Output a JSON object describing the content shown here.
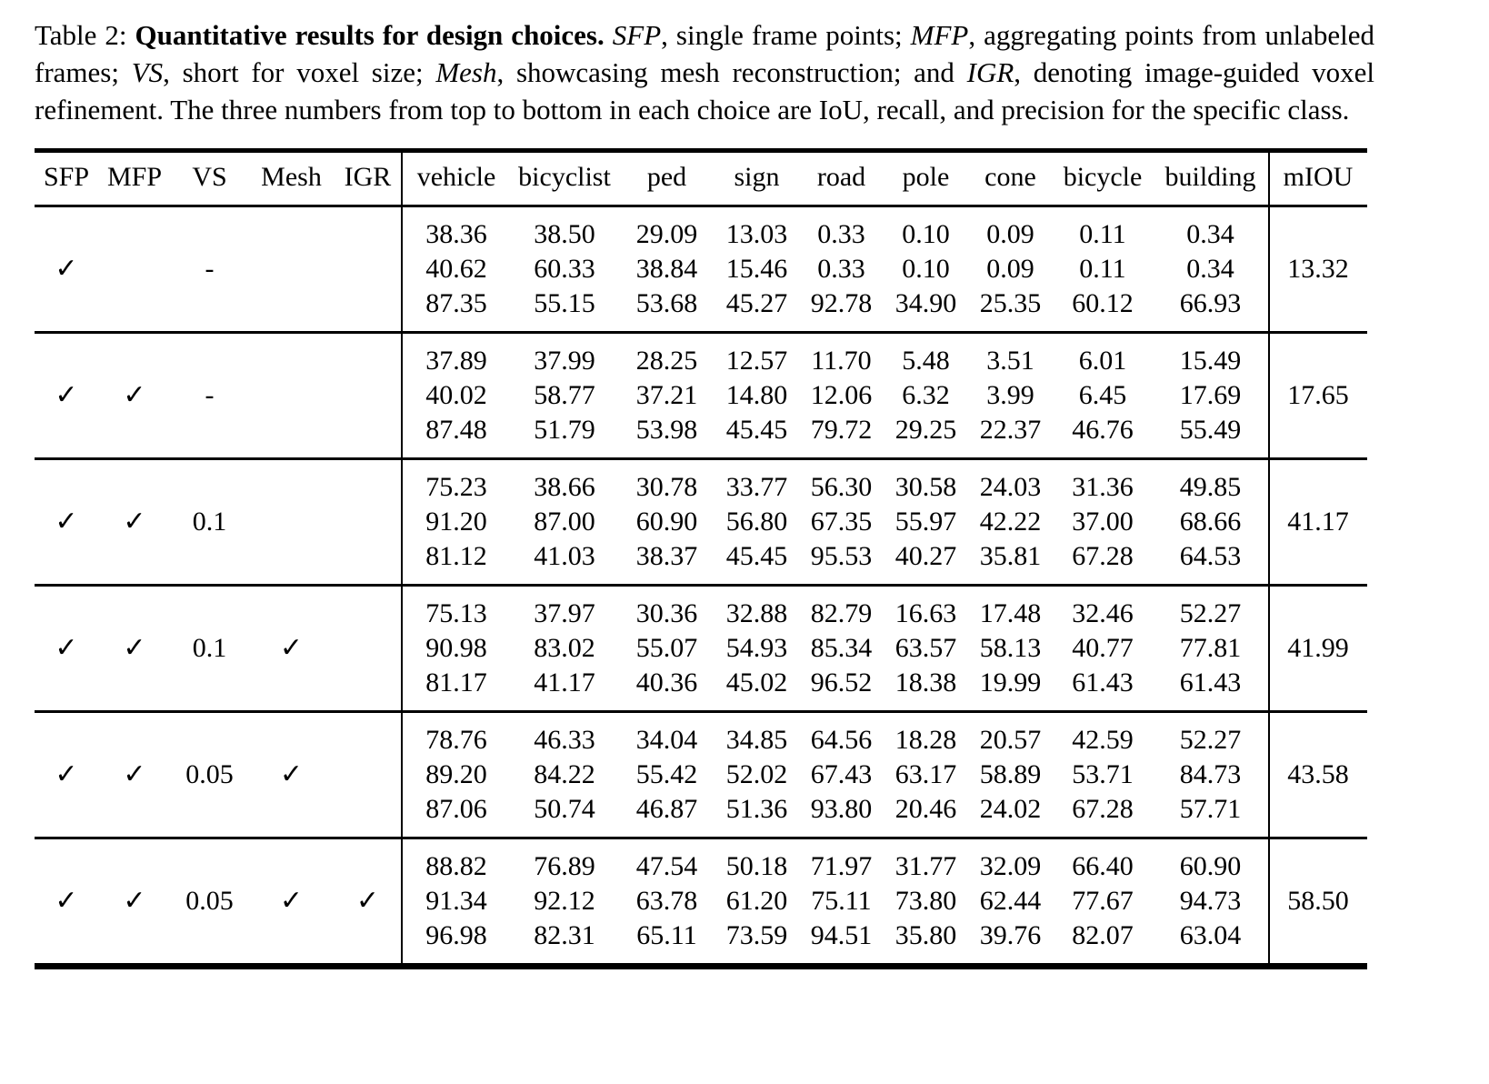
{
  "caption": {
    "segments": [
      {
        "text": "Table 2: ",
        "style": "normal"
      },
      {
        "text": "Quantitative results for design choices. ",
        "style": "bold"
      },
      {
        "text": "SFP",
        "style": "italic"
      },
      {
        "text": ", single frame points; ",
        "style": "normal"
      },
      {
        "text": "MFP",
        "style": "italic"
      },
      {
        "text": ", aggregating points from unlabeled frames; ",
        "style": "normal"
      },
      {
        "text": "VS",
        "style": "italic"
      },
      {
        "text": ", short for voxel size; ",
        "style": "normal"
      },
      {
        "text": "Mesh",
        "style": "italic"
      },
      {
        "text": ", showcasing mesh reconstruction; and ",
        "style": "normal"
      },
      {
        "text": "IGR",
        "style": "italic"
      },
      {
        "text": ", denoting image-guided voxel refinement. The three numbers from top to bottom in each choice are IoU, recall, and precision for the specific class.",
        "style": "normal"
      }
    ]
  },
  "table": {
    "config_columns": [
      "SFP",
      "MFP",
      "VS",
      "Mesh",
      "IGR"
    ],
    "class_columns": [
      "vehicle",
      "bicyclist",
      "ped",
      "sign",
      "road",
      "pole",
      "cone",
      "bicycle",
      "building"
    ],
    "summary_column": "mIOU",
    "check_glyph": "✓",
    "rows": [
      {
        "config": [
          "✓",
          "",
          "-",
          "",
          ""
        ],
        "values": {
          "vehicle": [
            "38.36",
            "40.62",
            "87.35"
          ],
          "bicyclist": [
            "38.50",
            "60.33",
            "55.15"
          ],
          "ped": [
            "29.09",
            "38.84",
            "53.68"
          ],
          "sign": [
            "13.03",
            "15.46",
            "45.27"
          ],
          "road": [
            "0.33",
            "0.33",
            "92.78"
          ],
          "pole": [
            "0.10",
            "0.10",
            "34.90"
          ],
          "cone": [
            "0.09",
            "0.09",
            "25.35"
          ],
          "bicycle": [
            "0.11",
            "0.11",
            "60.12"
          ],
          "building": [
            "0.34",
            "0.34",
            "66.93"
          ]
        },
        "mIOU": "13.32"
      },
      {
        "config": [
          "✓",
          "✓",
          "-",
          "",
          ""
        ],
        "values": {
          "vehicle": [
            "37.89",
            "40.02",
            "87.48"
          ],
          "bicyclist": [
            "37.99",
            "58.77",
            "51.79"
          ],
          "ped": [
            "28.25",
            "37.21",
            "53.98"
          ],
          "sign": [
            "12.57",
            "14.80",
            "45.45"
          ],
          "road": [
            "11.70",
            "12.06",
            "79.72"
          ],
          "pole": [
            "5.48",
            "6.32",
            "29.25"
          ],
          "cone": [
            "3.51",
            "3.99",
            "22.37"
          ],
          "bicycle": [
            "6.01",
            "6.45",
            "46.76"
          ],
          "building": [
            "15.49",
            "17.69",
            "55.49"
          ]
        },
        "mIOU": "17.65"
      },
      {
        "config": [
          "✓",
          "✓",
          "0.1",
          "",
          ""
        ],
        "values": {
          "vehicle": [
            "75.23",
            "91.20",
            "81.12"
          ],
          "bicyclist": [
            "38.66",
            "87.00",
            "41.03"
          ],
          "ped": [
            "30.78",
            "60.90",
            "38.37"
          ],
          "sign": [
            "33.77",
            "56.80",
            "45.45"
          ],
          "road": [
            "56.30",
            "67.35",
            "95.53"
          ],
          "pole": [
            "30.58",
            "55.97",
            "40.27"
          ],
          "cone": [
            "24.03",
            "42.22",
            "35.81"
          ],
          "bicycle": [
            "31.36",
            "37.00",
            "67.28"
          ],
          "building": [
            "49.85",
            "68.66",
            "64.53"
          ]
        },
        "mIOU": "41.17"
      },
      {
        "config": [
          "✓",
          "✓",
          "0.1",
          "✓",
          ""
        ],
        "values": {
          "vehicle": [
            "75.13",
            "90.98",
            "81.17"
          ],
          "bicyclist": [
            "37.97",
            "83.02",
            "41.17"
          ],
          "ped": [
            "30.36",
            "55.07",
            "40.36"
          ],
          "sign": [
            "32.88",
            "54.93",
            "45.02"
          ],
          "road": [
            "82.79",
            "85.34",
            "96.52"
          ],
          "pole": [
            "16.63",
            "63.57",
            "18.38"
          ],
          "cone": [
            "17.48",
            "58.13",
            "19.99"
          ],
          "bicycle": [
            "32.46",
            "40.77",
            "61.43"
          ],
          "building": [
            "52.27",
            "77.81",
            "61.43"
          ]
        },
        "mIOU": "41.99"
      },
      {
        "config": [
          "✓",
          "✓",
          "0.05",
          "✓",
          ""
        ],
        "values": {
          "vehicle": [
            "78.76",
            "89.20",
            "87.06"
          ],
          "bicyclist": [
            "46.33",
            "84.22",
            "50.74"
          ],
          "ped": [
            "34.04",
            "55.42",
            "46.87"
          ],
          "sign": [
            "34.85",
            "52.02",
            "51.36"
          ],
          "road": [
            "64.56",
            "67.43",
            "93.80"
          ],
          "pole": [
            "18.28",
            "63.17",
            "20.46"
          ],
          "cone": [
            "20.57",
            "58.89",
            "24.02"
          ],
          "bicycle": [
            "42.59",
            "53.71",
            "67.28"
          ],
          "building": [
            "52.27",
            "84.73",
            "57.71"
          ]
        },
        "mIOU": "43.58"
      },
      {
        "config": [
          "✓",
          "✓",
          "0.05",
          "✓",
          "✓"
        ],
        "values": {
          "vehicle": [
            "88.82",
            "91.34",
            "96.98"
          ],
          "bicyclist": [
            "76.89",
            "92.12",
            "82.31"
          ],
          "ped": [
            "47.54",
            "63.78",
            "65.11"
          ],
          "sign": [
            "50.18",
            "61.20",
            "73.59"
          ],
          "road": [
            "71.97",
            "75.11",
            "94.51"
          ],
          "pole": [
            "31.77",
            "73.80",
            "35.80"
          ],
          "cone": [
            "32.09",
            "62.44",
            "39.76"
          ],
          "bicycle": [
            "66.40",
            "77.67",
            "82.07"
          ],
          "building": [
            "60.90",
            "94.73",
            "63.04"
          ]
        },
        "mIOU": "58.50"
      }
    ]
  }
}
